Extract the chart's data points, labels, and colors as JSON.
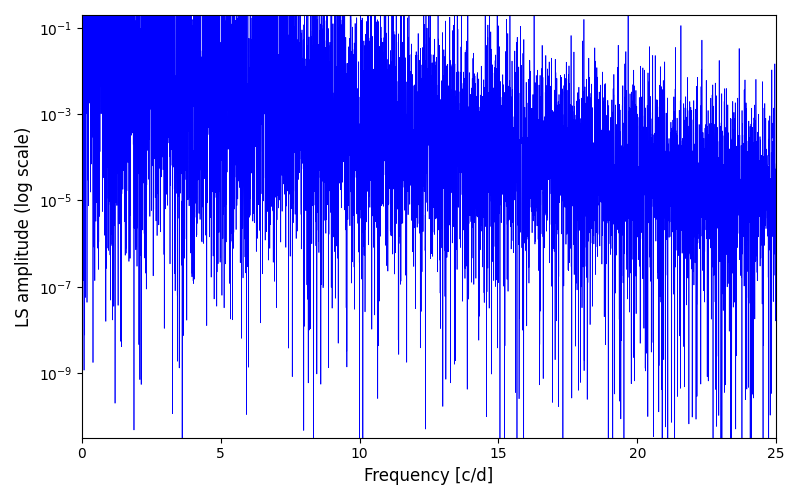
{
  "title": "",
  "xlabel": "Frequency [c/d]",
  "ylabel": "LS amplitude (log scale)",
  "xlim": [
    0,
    25
  ],
  "ylim_log": [
    -10.5,
    -0.7
  ],
  "line_color": "#0000ff",
  "line_width": 0.5,
  "yscale": "log",
  "figsize": [
    8.0,
    5.0
  ],
  "dpi": 100,
  "background_color": "#ffffff",
  "freq_min": 0.0,
  "freq_max": 25.0,
  "n_points": 8000,
  "seed": 7,
  "yticks": [
    1e-09,
    1e-07,
    1e-05,
    0.001,
    0.1
  ],
  "xticks": [
    0,
    5,
    10,
    15,
    20,
    25
  ]
}
